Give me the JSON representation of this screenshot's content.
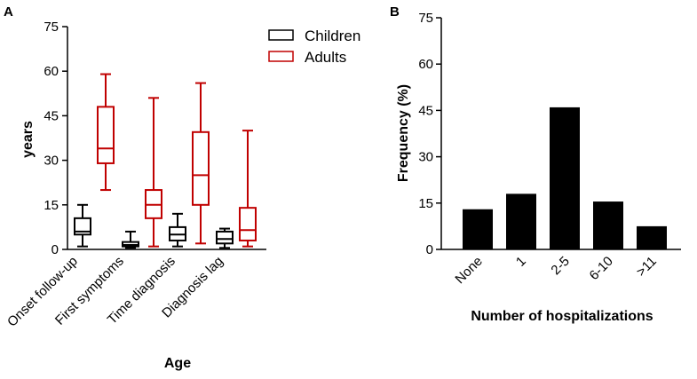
{
  "chart_data": [
    {
      "panel": "A",
      "type": "box",
      "title": "",
      "xlabel": "Age",
      "ylabel": "years",
      "ylim": [
        0,
        75
      ],
      "yticks": [
        "0",
        "15",
        "30",
        "45",
        "60",
        "75"
      ],
      "categories": [
        "Onset follow-up",
        "First symptoms",
        "Time diagnosis",
        "Diagnosis lag"
      ],
      "legend": {
        "placement": "top-right",
        "entries": [
          "Children",
          "Adults"
        ]
      },
      "series": [
        {
          "name": "Children",
          "color": "#000000",
          "boxes": [
            {
              "category": "Onset follow-up",
              "min": 1,
              "q1": 5,
              "median": 6,
              "q3": 10.5,
              "max": 15
            },
            {
              "category": "First symptoms",
              "min": 0.5,
              "q1": 1,
              "median": 1.5,
              "q3": 2.5,
              "max": 6
            },
            {
              "category": "Time diagnosis",
              "min": 1,
              "q1": 3,
              "median": 5,
              "q3": 7.5,
              "max": 12
            },
            {
              "category": "Diagnosis lag",
              "min": 0.5,
              "q1": 2,
              "median": 3.5,
              "q3": 6,
              "max": 7
            }
          ]
        },
        {
          "name": "Adults",
          "color": "#c00000",
          "boxes": [
            {
              "category": "Onset follow-up",
              "min": 20,
              "q1": 29,
              "median": 34,
              "q3": 48,
              "max": 59
            },
            {
              "category": "First symptoms",
              "min": 1,
              "q1": 10.5,
              "median": 15,
              "q3": 20,
              "max": 51
            },
            {
              "category": "Time diagnosis",
              "min": 2,
              "q1": 15,
              "median": 25,
              "q3": 39.5,
              "max": 56
            },
            {
              "category": "Diagnosis lag",
              "min": 1,
              "q1": 3,
              "median": 6.5,
              "q3": 14,
              "max": 40
            }
          ]
        }
      ]
    },
    {
      "panel": "B",
      "type": "bar",
      "title": "",
      "xlabel": "Number of hospitalizations",
      "ylabel": "Frequency (%)",
      "ylim": [
        0,
        75
      ],
      "yticks": [
        "0",
        "15",
        "30",
        "45",
        "60",
        "75"
      ],
      "categories": [
        "None",
        "1",
        "2-5",
        "6-10",
        ">11"
      ],
      "values": [
        13,
        18,
        46,
        15.5,
        7.5
      ],
      "color": "#000000"
    }
  ]
}
